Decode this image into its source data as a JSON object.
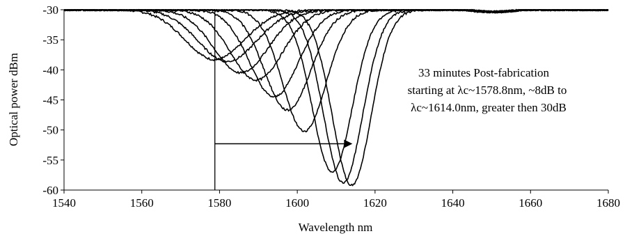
{
  "chart_data": {
    "type": "line",
    "title": "",
    "xlabel": "Wavelength nm",
    "ylabel": "Optical power dBm",
    "xlim": [
      1540,
      1680
    ],
    "ylim": [
      -60,
      -30
    ],
    "x_ticks": [
      "1540",
      "1560",
      "1580",
      "1600",
      "1620",
      "1640",
      "1660",
      "1680"
    ],
    "y_ticks": [
      "-30",
      "-35",
      "-40",
      "-45",
      "-50",
      "-55",
      "-60"
    ],
    "grid": false,
    "legend": "none",
    "baseline_dbm": -30,
    "series": [
      {
        "center_nm": 1578.8,
        "min_dbm": -38.3
      },
      {
        "center_nm": 1582.0,
        "min_dbm": -38.6
      },
      {
        "center_nm": 1585.5,
        "min_dbm": -40.5
      },
      {
        "center_nm": 1589.5,
        "min_dbm": -41.7
      },
      {
        "center_nm": 1594.0,
        "min_dbm": -44.5
      },
      {
        "center_nm": 1597.5,
        "min_dbm": -46.7
      },
      {
        "center_nm": 1601.8,
        "min_dbm": -50.2
      },
      {
        "center_nm": 1609.0,
        "min_dbm": -57.0
      },
      {
        "center_nm": 1611.8,
        "min_dbm": -58.8
      },
      {
        "center_nm": 1614.0,
        "min_dbm": -59.2
      }
    ],
    "annotation": {
      "lines": [
        "33 minutes Post-fabrication",
        "starting at λc~1578.8nm, ~8dB to",
        "λc~1614.0nm, greater then 30dB"
      ],
      "arrow_from_nm": 1578.8,
      "arrow_to_nm": 1614.0,
      "arrow_at_dbm": -52.3
    }
  }
}
